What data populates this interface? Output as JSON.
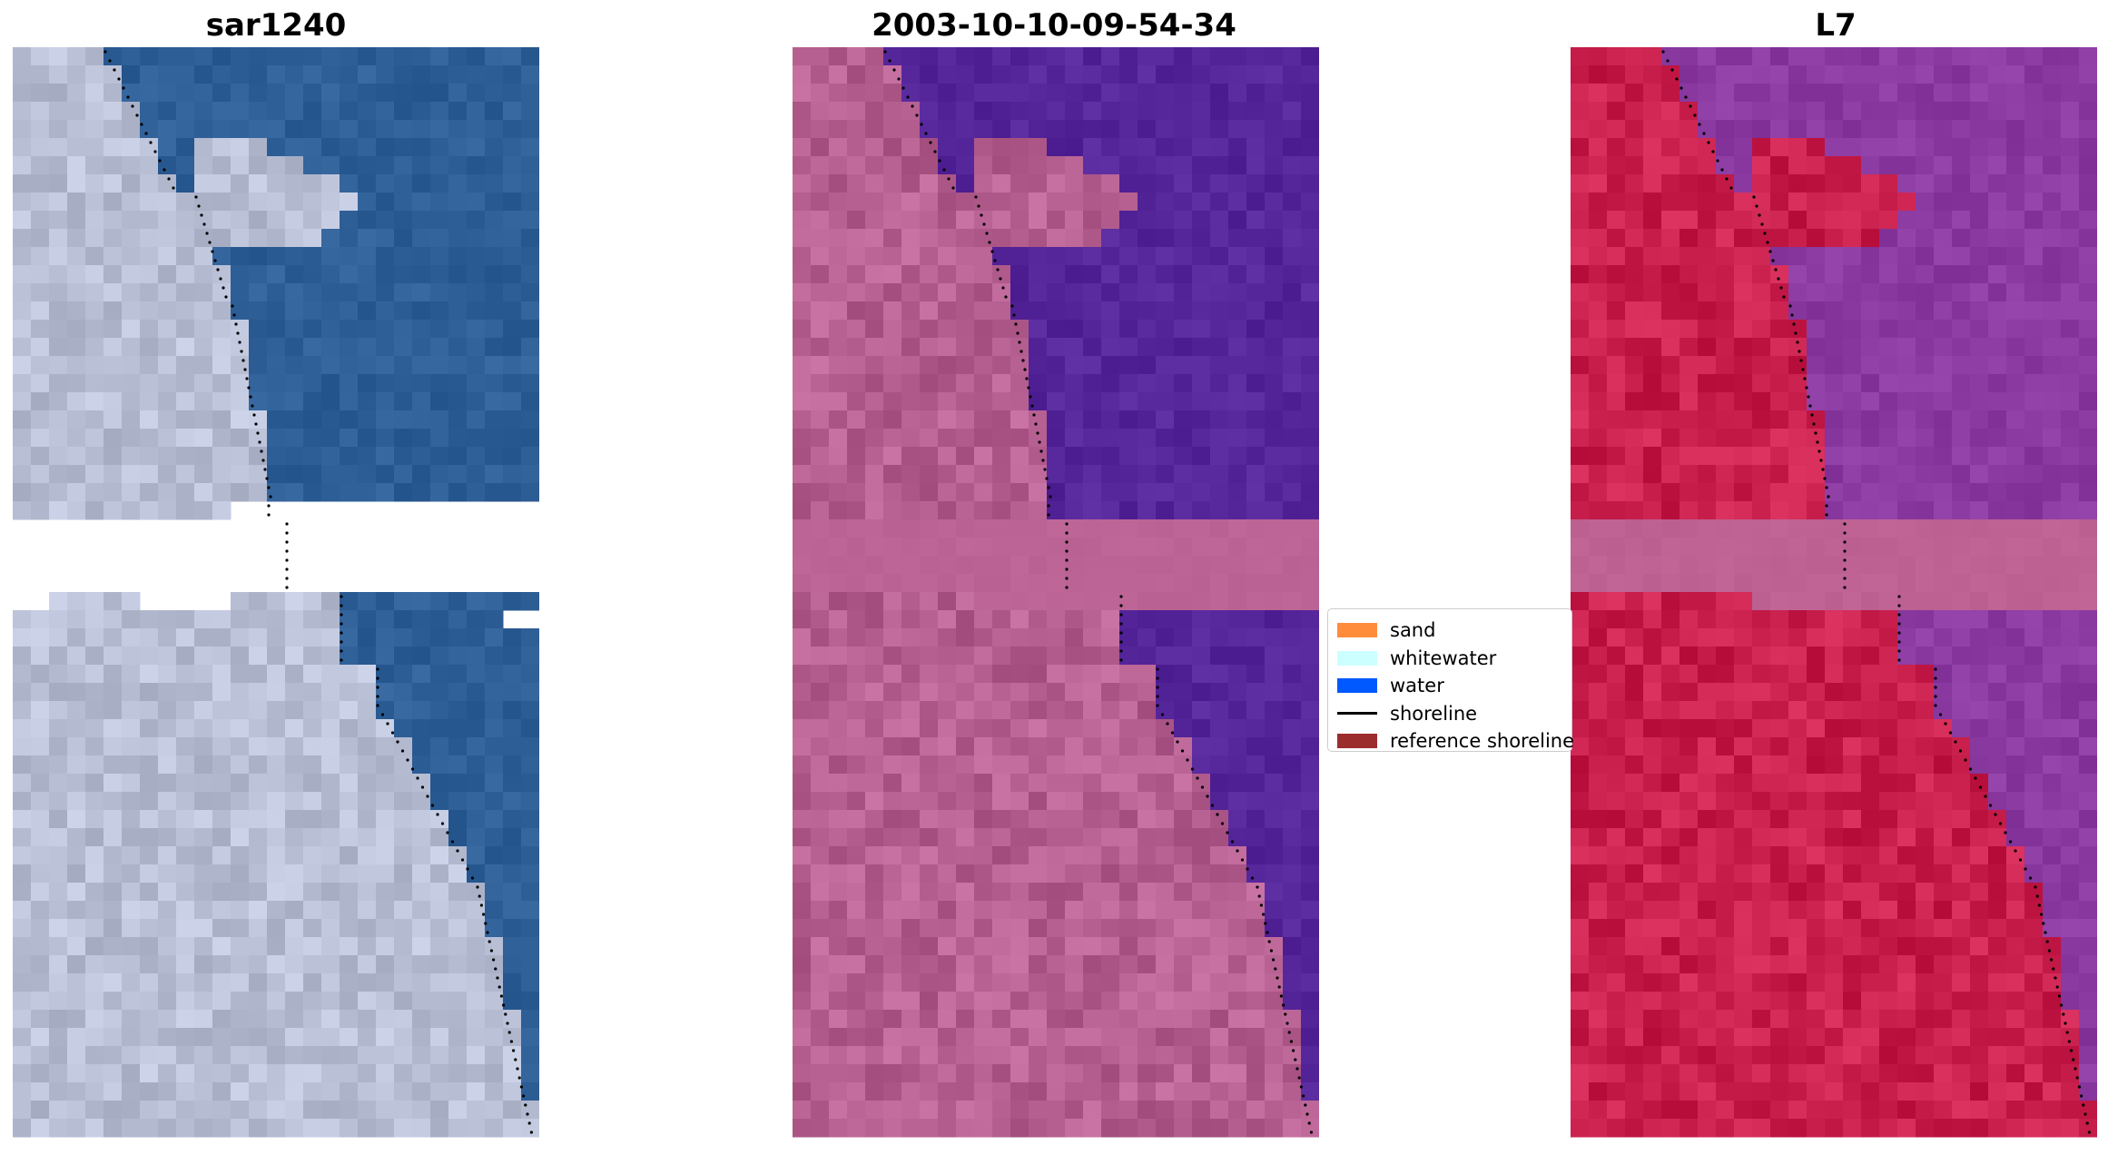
{
  "panels": [
    {
      "title": "sar1240",
      "style": "rgb"
    },
    {
      "title": "2003-10-10-09-54-34",
      "style": "classified"
    },
    {
      "title": "L7",
      "style": "ndwi"
    }
  ],
  "legend": {
    "items": [
      {
        "label": "sand",
        "color": "#ff8c3b",
        "kind": "patch"
      },
      {
        "label": "whitewater",
        "color": "#ccffff",
        "kind": "patch"
      },
      {
        "label": "water",
        "color": "#0059ff",
        "kind": "patch"
      },
      {
        "label": "shoreline",
        "color": "#000000",
        "kind": "line"
      },
      {
        "label": "reference shoreline",
        "color": "#9b2d2d",
        "kind": "patch"
      }
    ]
  },
  "colors": {
    "rgb_water": "#2f5f97",
    "rgb_land": "#b9c0cc",
    "class_water": "#55259a",
    "class_land": "#b56091",
    "class_cloud": "#bb6495",
    "ndwi_water": "#8a3aa0",
    "ndwi_land": "#c81f4c",
    "ndwi_cloud": "#bd6293"
  }
}
